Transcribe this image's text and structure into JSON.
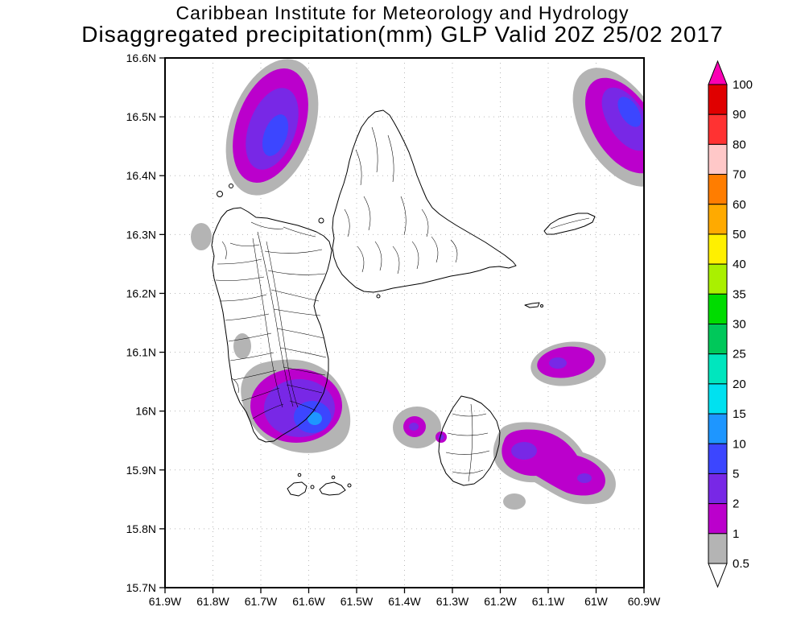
{
  "header": {
    "line1": "Caribbean Institute for Meteorology and Hydrology",
    "line2": "Disaggregated precipitation(mm) GLP Valid 20Z 25/02 2017"
  },
  "axes": {
    "lat_labels": [
      "16.6N",
      "16.5N",
      "16.4N",
      "16.3N",
      "16.2N",
      "16.1N",
      "16N",
      "15.9N",
      "15.8N",
      "15.7N"
    ],
    "lon_labels": [
      "61.9W",
      "61.8W",
      "61.7W",
      "61.6W",
      "61.5W",
      "61.4W",
      "61.3W",
      "61.2W",
      "61.1W",
      "61W",
      "60.9W"
    ]
  },
  "colorbar": {
    "units": "mm",
    "boundary_labels": [
      "100",
      "90",
      "80",
      "70",
      "60",
      "50",
      "40",
      "35",
      "30",
      "25",
      "20",
      "15",
      "10",
      "5",
      "2",
      "1",
      "0.5"
    ],
    "over_arrow_color": "#fa00b4",
    "under_arrow_color": "#ffffff",
    "segments_top_to_bottom": [
      {
        "range": "90-100",
        "color": "#e00000"
      },
      {
        "range": "80-90",
        "color": "#ff3232"
      },
      {
        "range": "70-80",
        "color": "#ffc8c8"
      },
      {
        "range": "60-70",
        "color": "#ff7d00"
      },
      {
        "range": "50-60",
        "color": "#ffaa00"
      },
      {
        "range": "40-50",
        "color": "#fff000"
      },
      {
        "range": "35-40",
        "color": "#aaf000"
      },
      {
        "range": "30-35",
        "color": "#00dc00"
      },
      {
        "range": "25-30",
        "color": "#00c85a"
      },
      {
        "range": "20-25",
        "color": "#00e6be"
      },
      {
        "range": "15-20",
        "color": "#00e1f0"
      },
      {
        "range": "10-15",
        "color": "#1e96ff"
      },
      {
        "range": "5-10",
        "color": "#3c46ff"
      },
      {
        "range": "2-5",
        "color": "#7828e6"
      },
      {
        "range": "1-2",
        "color": "#bb00cc"
      },
      {
        "range": "0.5-1",
        "color": "#b4b4b4"
      }
    ]
  }
}
